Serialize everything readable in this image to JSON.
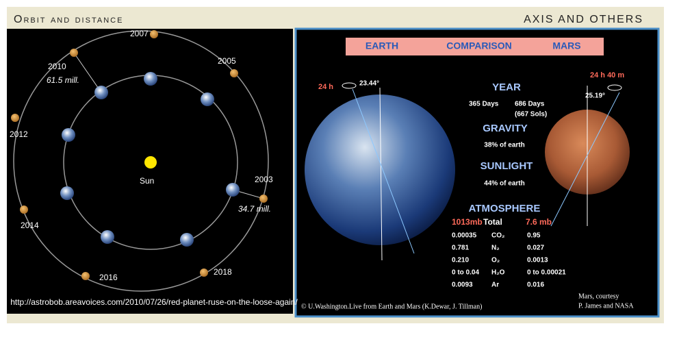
{
  "left": {
    "title": "Orbit and distance",
    "sun": "Sun",
    "years": [
      "2007",
      "2005",
      "2003",
      "2018",
      "2016",
      "2014",
      "2012",
      "2010"
    ],
    "distances": [
      "61.5 mill.",
      "34.7 mill."
    ],
    "url": "http://astrobob.areavoices.com/2010/07/26/red-planet-ruse-on-the-loose-again/"
  },
  "right": {
    "title": "AXIS AND OTHERS",
    "banner": [
      "EARTH",
      "COMPARISON",
      "MARS"
    ],
    "earth_day": "24 h",
    "earth_tilt": "23.44°",
    "mars_day": "24 h 40 m",
    "mars_tilt": "25.19°",
    "year": {
      "heading": "YEAR",
      "earth": "365 Days",
      "mars": "686 Days",
      "mars_sols": "(667 Sols)"
    },
    "gravity": {
      "heading": "GRAVITY",
      "text": "38% of earth"
    },
    "sunlight": {
      "heading": "SUNLIGHT",
      "text": "44% of earth"
    },
    "atmosphere": {
      "heading": "ATMOSPHERE",
      "header": [
        "1013mb",
        "Total",
        "7.6 mb"
      ],
      "rows": [
        [
          "0.00035",
          "CO₂",
          "0.95"
        ],
        [
          "0.781",
          "N₂",
          "0.027"
        ],
        [
          "0.210",
          "O₂",
          "0.0013"
        ],
        [
          "0 to 0.04",
          "H₂O",
          "0 to 0.00021"
        ],
        [
          "0.0093",
          "Ar",
          "0.016"
        ]
      ]
    },
    "credit": "© U.Washington.Live from Earth and Mars  (K.Dewar, J. Tillman)",
    "mars_credit": [
      "Mars, courtesy",
      "P. James and NASA"
    ]
  }
}
